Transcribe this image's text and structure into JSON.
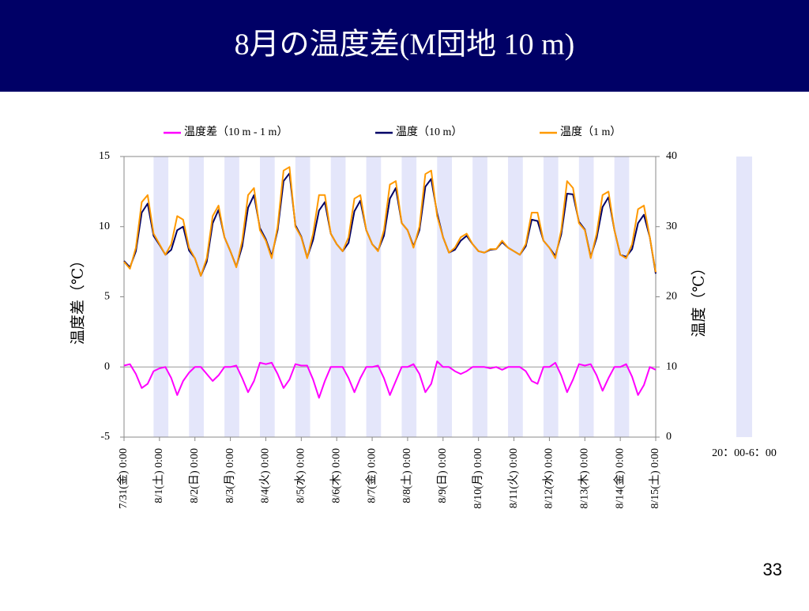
{
  "header": {
    "title": "8月の温度差(M団地 10 m)"
  },
  "page_number": "33",
  "chart_data": {
    "type": "line",
    "ylabel": "温度差（℃）",
    "y2label": "温度（℃）",
    "ylim": [
      -5,
      15
    ],
    "yticks": [
      -5,
      0,
      5,
      10,
      15
    ],
    "y2lim": [
      0,
      40
    ],
    "y2ticks": [
      0,
      10,
      20,
      30,
      40
    ],
    "xlim": [
      0,
      360
    ],
    "xticks": [
      {
        "value": 0,
        "label": "7/31(金) 0:00"
      },
      {
        "value": 24,
        "label": "8/1(土) 0:00"
      },
      {
        "value": 48,
        "label": "8/2(日) 0:00"
      },
      {
        "value": 72,
        "label": "8/3(月) 0:00"
      },
      {
        "value": 96,
        "label": "8/4(火) 0:00"
      },
      {
        "value": 120,
        "label": "8/5(水) 0:00"
      },
      {
        "value": 144,
        "label": "8/6(木) 0:00"
      },
      {
        "value": 168,
        "label": "8/7(金) 0:00"
      },
      {
        "value": 192,
        "label": "8/8(土) 0:00"
      },
      {
        "value": 216,
        "label": "8/9(日) 0:00"
      },
      {
        "value": 240,
        "label": "8/10(月) 0:00"
      },
      {
        "value": 264,
        "label": "8/11(火) 0:00"
      },
      {
        "value": 288,
        "label": "8/12(水) 0:00"
      },
      {
        "value": 312,
        "label": "8/13(木) 0:00"
      },
      {
        "value": 336,
        "label": "8/14(金) 0:00"
      },
      {
        "value": 360,
        "label": "8/15(土) 0:00"
      }
    ],
    "night_bands": {
      "label": "20：00-6：00",
      "color": "#e4e6fa",
      "ranges": [
        [
          20,
          30
        ],
        [
          44,
          54
        ],
        [
          68,
          78
        ],
        [
          92,
          102
        ],
        [
          116,
          126
        ],
        [
          140,
          150
        ],
        [
          164,
          174
        ],
        [
          188,
          198
        ],
        [
          212,
          222
        ],
        [
          236,
          246
        ],
        [
          260,
          270
        ],
        [
          284,
          294
        ],
        [
          308,
          318
        ],
        [
          332,
          342
        ]
      ]
    },
    "x": [
      0,
      4,
      8,
      12,
      16,
      20,
      24,
      28,
      32,
      36,
      40,
      44,
      48,
      52,
      56,
      60,
      64,
      68,
      72,
      76,
      80,
      84,
      88,
      92,
      96,
      100,
      104,
      108,
      112,
      116,
      120,
      124,
      128,
      132,
      136,
      140,
      144,
      148,
      152,
      156,
      160,
      164,
      168,
      172,
      176,
      180,
      184,
      188,
      192,
      196,
      200,
      204,
      208,
      212,
      216,
      220,
      224,
      228,
      232,
      236,
      240,
      244,
      248,
      252,
      256,
      260,
      264,
      268,
      272,
      276,
      280,
      284,
      288,
      292,
      296,
      300,
      304,
      308,
      312,
      316,
      320,
      324,
      328,
      332,
      336,
      340,
      344,
      348,
      352,
      356,
      360
    ],
    "series": [
      {
        "name": "温度差（10 m - 1 m）",
        "color": "#ff00ff",
        "values": [
          0.1,
          0.2,
          -0.5,
          -1.5,
          -1.2,
          -0.3,
          -0.1,
          0,
          -0.8,
          -2.0,
          -1.0,
          -0.4,
          0,
          0,
          -0.5,
          -1.0,
          -0.6,
          0,
          0,
          0.1,
          -0.8,
          -1.8,
          -1.0,
          0.3,
          0.2,
          0.3,
          -0.5,
          -1.5,
          -0.9,
          0.2,
          0.1,
          0.1,
          -0.9,
          -2.2,
          -1.0,
          0,
          0,
          0,
          -0.8,
          -1.8,
          -0.8,
          0,
          0,
          0.1,
          -0.8,
          -2.0,
          -1.0,
          0,
          0,
          0.2,
          -0.5,
          -1.8,
          -1.2,
          0.4,
          0,
          0,
          -0.3,
          -0.5,
          -0.3,
          0,
          0,
          0,
          -0.1,
          0,
          -0.2,
          0,
          0,
          0,
          -0.3,
          -1.0,
          -1.2,
          0,
          0,
          0.3,
          -0.6,
          -1.8,
          -0.9,
          0.2,
          0.1,
          0.2,
          -0.6,
          -1.7,
          -0.8,
          0,
          0,
          0.2,
          -0.7,
          -2.0,
          -1.3,
          0,
          -0.2
        ]
      },
      {
        "name": "温度（10 m）",
        "color": "#000066",
        "axis": "y2",
        "values": [
          25.1,
          24.2,
          26.5,
          32.0,
          33.3,
          28.7,
          27.4,
          26.0,
          26.7,
          29.5,
          30.0,
          26.6,
          25.5,
          23.0,
          25.0,
          30.5,
          32.4,
          28.5,
          26.5,
          24.3,
          27.2,
          32.7,
          34.5,
          29.8,
          28.2,
          25.8,
          29.5,
          36.5,
          37.6,
          30.2,
          28.6,
          25.6,
          28.1,
          32.3,
          33.5,
          29.0,
          27.5,
          26.5,
          27.7,
          32.2,
          33.7,
          29.5,
          27.5,
          26.6,
          28.7,
          34.0,
          35.5,
          30.5,
          29.5,
          27.2,
          29.5,
          35.7,
          36.8,
          31.9,
          28.5,
          26.3,
          26.7,
          28.0,
          28.7,
          27.5,
          26.5,
          26.3,
          26.7,
          26.8,
          27.8,
          27.0,
          26.5,
          26.0,
          27.2,
          31.0,
          30.8,
          28.0,
          27.0,
          25.8,
          28.9,
          34.7,
          34.6,
          30.7,
          29.6,
          25.7,
          28.4,
          32.8,
          34.2,
          29.5,
          26.0,
          25.7,
          26.8,
          30.5,
          31.7,
          28.5,
          23.3
        ]
      },
      {
        "name": "温度（1 m）",
        "color": "#ff9900",
        "axis": "y2",
        "values": [
          25.0,
          24.0,
          27.0,
          33.5,
          34.5,
          29.0,
          27.5,
          26.0,
          27.5,
          31.5,
          31.0,
          27.0,
          25.5,
          23.0,
          25.5,
          31.5,
          33.0,
          28.5,
          26.5,
          24.2,
          28.0,
          34.5,
          35.5,
          29.5,
          28.0,
          25.5,
          30.0,
          38.0,
          38.5,
          30.0,
          28.5,
          25.5,
          29.0,
          34.5,
          34.5,
          29.0,
          27.5,
          26.5,
          28.5,
          34.0,
          34.5,
          29.5,
          27.5,
          26.5,
          29.5,
          36.0,
          36.5,
          30.5,
          29.5,
          27.0,
          30.0,
          37.5,
          38.0,
          31.5,
          28.5,
          26.3,
          27.0,
          28.5,
          29.0,
          27.5,
          26.5,
          26.3,
          26.8,
          26.8,
          28.0,
          27.0,
          26.5,
          26.0,
          27.5,
          32.0,
          32.0,
          28.0,
          27.0,
          25.5,
          29.5,
          36.5,
          35.5,
          30.5,
          29.5,
          25.5,
          29.0,
          34.5,
          35.0,
          29.5,
          26.0,
          25.5,
          27.5,
          32.5,
          33.0,
          28.5,
          23.5
        ]
      }
    ]
  }
}
